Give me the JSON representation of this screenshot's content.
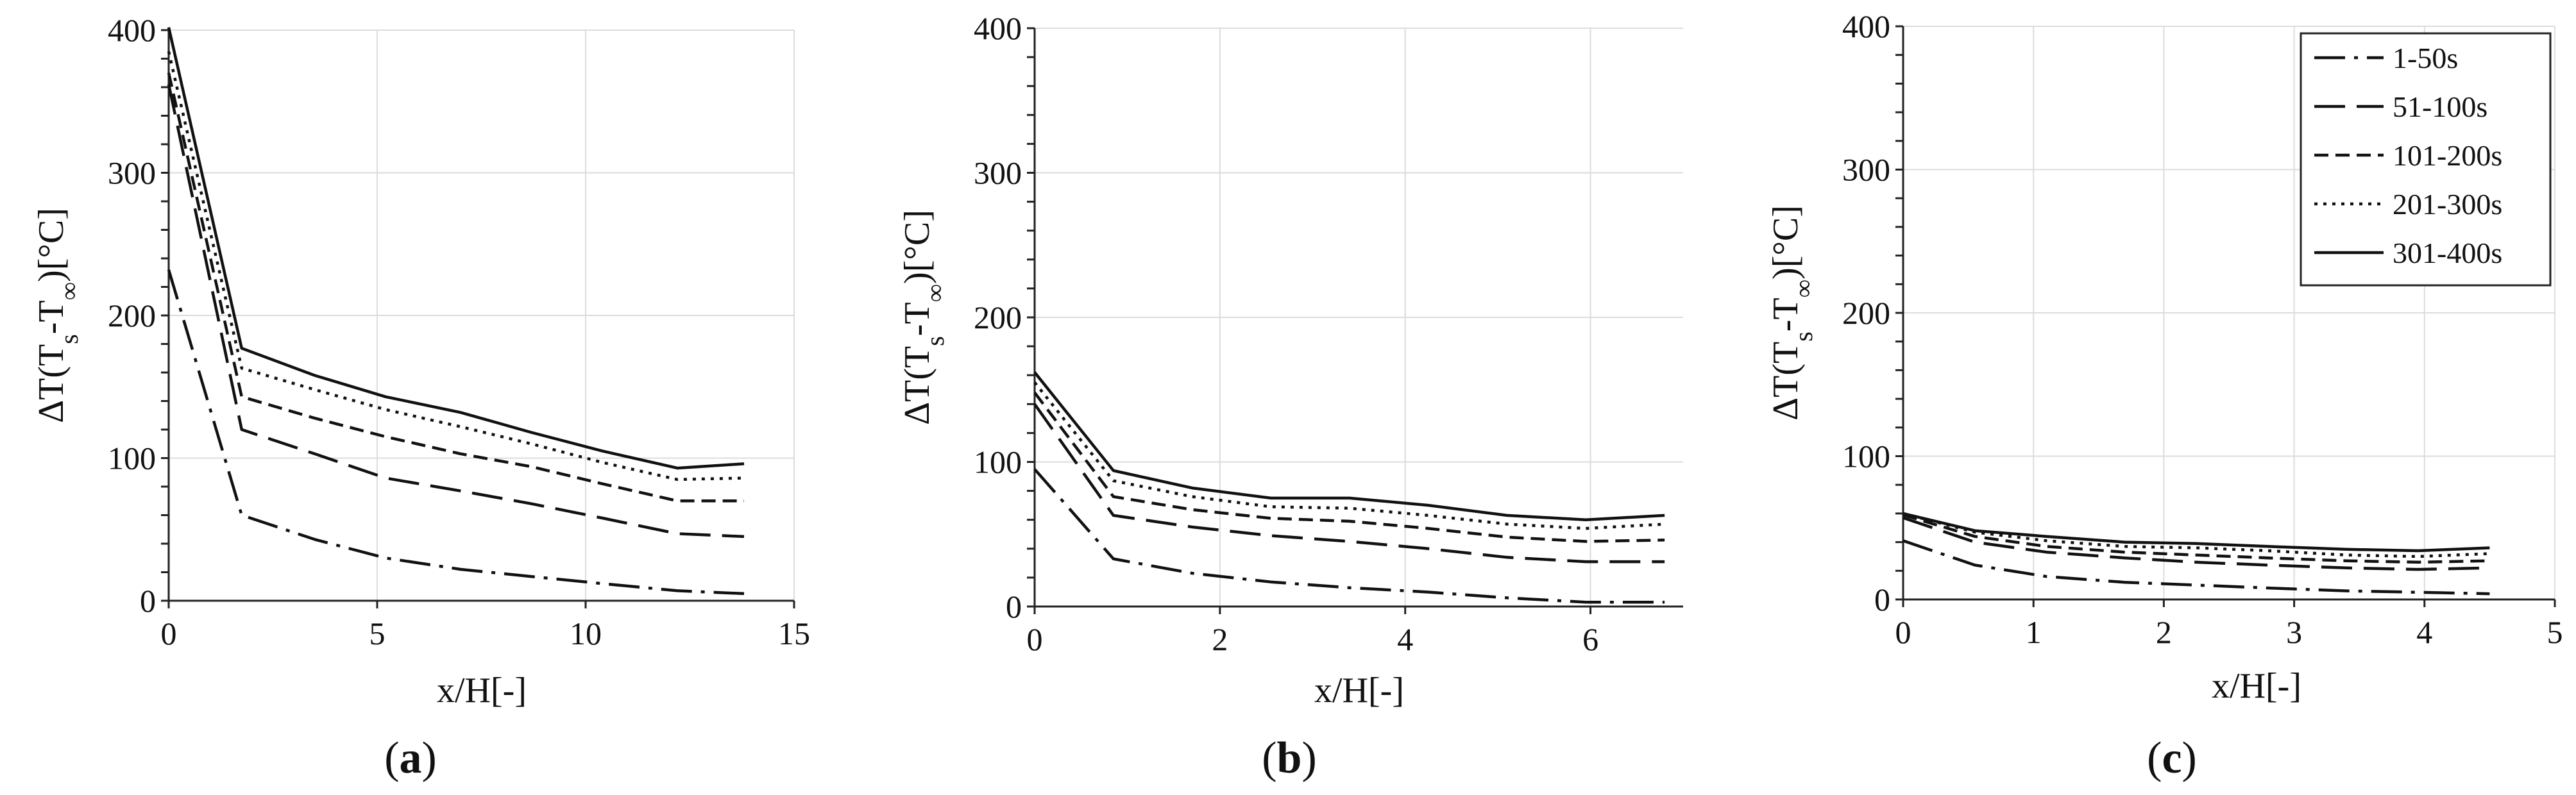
{
  "chart_data": [
    {
      "type": "line",
      "panel_label": "a",
      "xlabel": "x/H[-]",
      "ylabel": "ΔT(Ts-T∞)[°C]",
      "xlim": [
        0,
        15
      ],
      "ylim": [
        0,
        400
      ],
      "xticks": [
        0,
        5,
        10,
        15
      ],
      "yticks": [
        0,
        100,
        200,
        300,
        400
      ],
      "grid": true,
      "x": [
        0,
        1.75,
        3.5,
        5.2,
        7.0,
        8.7,
        10.4,
        12.2,
        13.8
      ],
      "series": [
        {
          "name": "1-50s",
          "values": [
            232,
            60,
            43,
            30,
            22,
            17,
            12,
            7,
            5
          ]
        },
        {
          "name": "51-100s",
          "values": [
            362,
            120,
            103,
            86,
            77,
            68,
            58,
            47,
            45
          ]
        },
        {
          "name": "101-200s",
          "values": [
            370,
            143,
            128,
            115,
            103,
            94,
            82,
            70,
            70
          ]
        },
        {
          "name": "201-300s",
          "values": [
            385,
            163,
            148,
            134,
            122,
            110,
            97,
            85,
            86
          ]
        },
        {
          "name": "301-400s",
          "values": [
            402,
            177,
            158,
            143,
            132,
            118,
            105,
            93,
            96
          ]
        }
      ]
    },
    {
      "type": "line",
      "panel_label": "b",
      "xlabel": "x/H[-]",
      "ylabel": "ΔT(Ts-T∞)[°C]",
      "xlim": [
        0,
        7
      ],
      "ylim": [
        0,
        400
      ],
      "xticks": [
        0,
        2,
        4,
        6
      ],
      "yticks": [
        0,
        100,
        200,
        300,
        400
      ],
      "grid": true,
      "x": [
        0,
        0.85,
        1.7,
        2.55,
        3.4,
        4.25,
        5.1,
        5.95,
        6.8
      ],
      "series": [
        {
          "name": "1-50s",
          "values": [
            95,
            33,
            23,
            17,
            13,
            10,
            6,
            3,
            3
          ]
        },
        {
          "name": "51-100s",
          "values": [
            140,
            63,
            55,
            49,
            45,
            40,
            34,
            31,
            31
          ]
        },
        {
          "name": "101-200s",
          "values": [
            148,
            76,
            67,
            61,
            59,
            54,
            48,
            45,
            46
          ]
        },
        {
          "name": "201-300s",
          "values": [
            155,
            87,
            76,
            69,
            68,
            63,
            57,
            54,
            57
          ]
        },
        {
          "name": "301-400s",
          "values": [
            162,
            94,
            82,
            75,
            75,
            70,
            63,
            60,
            63
          ]
        }
      ]
    },
    {
      "type": "line",
      "panel_label": "c",
      "xlabel": "x/H[-]",
      "ylabel": "ΔT(Ts-T∞)[°C]",
      "xlim": [
        0,
        5
      ],
      "ylim": [
        0,
        400
      ],
      "xticks": [
        0,
        1,
        2,
        3,
        4,
        5
      ],
      "yticks": [
        0,
        100,
        200,
        300,
        400
      ],
      "grid": true,
      "legend": "top-right",
      "x": [
        0,
        0.55,
        1.1,
        1.7,
        2.25,
        2.8,
        3.4,
        3.95,
        4.5
      ],
      "series": [
        {
          "name": "1-50s",
          "values": [
            41,
            24,
            16,
            12,
            10,
            8,
            6,
            5,
            4
          ]
        },
        {
          "name": "51-100s",
          "values": [
            57,
            40,
            33,
            29,
            26,
            24,
            22,
            21,
            22
          ]
        },
        {
          "name": "101-200s",
          "values": [
            59,
            44,
            37,
            33,
            31,
            29,
            27,
            26,
            27
          ]
        },
        {
          "name": "201-300s",
          "values": [
            60,
            47,
            41,
            37,
            36,
            34,
            31,
            30,
            32
          ]
        },
        {
          "name": "301-400s",
          "values": [
            60,
            48,
            44,
            40,
            39,
            37,
            35,
            34,
            36
          ]
        }
      ]
    }
  ],
  "legend": {
    "entries": [
      "1-50s",
      "51-100s",
      "101-200s",
      "201-300s",
      "301-400s"
    ]
  },
  "series_styles": [
    {
      "name": "1-50s",
      "dash": "dashdot",
      "color": "#111111"
    },
    {
      "name": "51-100s",
      "dash": "longdash",
      "color": "#111111"
    },
    {
      "name": "101-200s",
      "dash": "dash",
      "color": "#111111"
    },
    {
      "name": "201-300s",
      "dash": "dot",
      "color": "#111111"
    },
    {
      "name": "301-400s",
      "dash": "solid",
      "color": "#111111"
    }
  ]
}
